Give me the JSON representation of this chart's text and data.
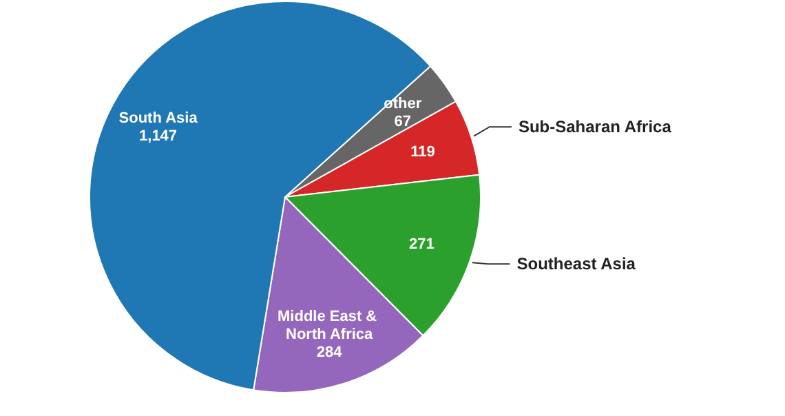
{
  "chart_data": {
    "type": "pie",
    "categories": [
      "other",
      "Sub-Saharan Africa",
      "Southeast Asia",
      "Middle East & North Africa",
      "South Asia"
    ],
    "values": [
      67,
      119,
      271,
      284,
      1147
    ],
    "value_labels": [
      "67",
      "119",
      "271",
      "284",
      "1,147"
    ],
    "colors": [
      "#666666",
      "#d62728",
      "#2ca02c",
      "#9467bd",
      "#1f77b4"
    ]
  }
}
